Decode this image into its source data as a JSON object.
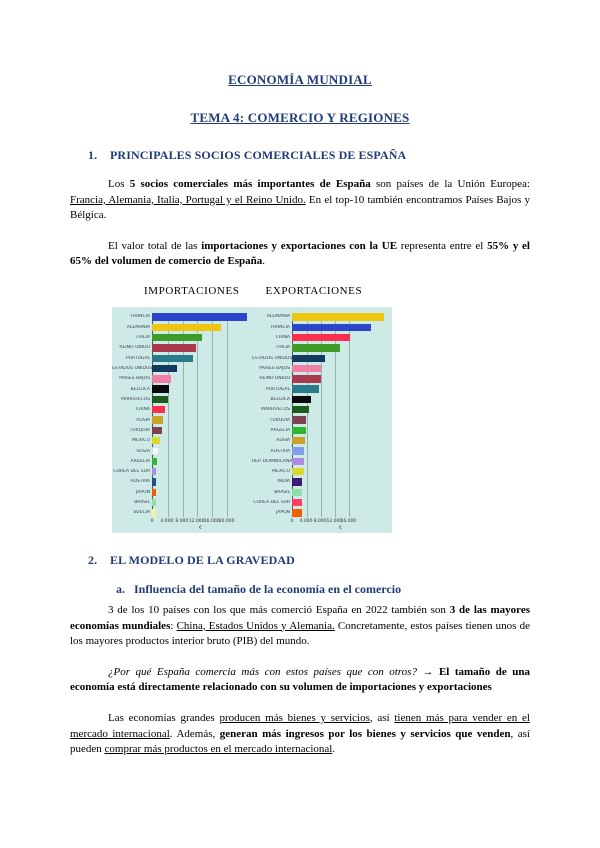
{
  "doc": {
    "title": "ECONOMÍA MUNDIAL",
    "subtitle": "TEMA 4: COMERCIO Y REGIONES"
  },
  "section1": {
    "number": "1.",
    "heading": "PRINCIPALES SOCIOS COMERCIALES DE ESPAÑA",
    "paragraphs": [
      [
        {
          "t": "Los ",
          "s": ""
        },
        {
          "t": "5 socios comerciales más importantes de España",
          "s": "b"
        },
        {
          "t": " son países de la Unión Europea: ",
          "s": ""
        },
        {
          "t": "Francia, Alemania, Italia, Portugal y el Reino Unido.",
          "s": "u"
        },
        {
          "t": " En el top-10 también encontramos Países Bajos y Bélgica.",
          "s": ""
        }
      ],
      [
        {
          "t": "El valor total de las ",
          "s": ""
        },
        {
          "t": "importaciones y exportaciones con la UE",
          "s": "b"
        },
        {
          "t": " representa entre el ",
          "s": ""
        },
        {
          "t": "55% y el 65% del volumen de comercio de España",
          "s": "b"
        },
        {
          "t": ".",
          "s": ""
        }
      ]
    ]
  },
  "chart_captions": {
    "left": "IMPORTACIONES",
    "right": "EXPORTACIONES"
  },
  "chart_data": [
    {
      "type": "bar",
      "orientation": "horizontal",
      "title": "IMPORTACIONES",
      "categories": [
        "FRANCIA",
        "ALEMANIA",
        "ITALIA",
        "REINO UNIDO",
        "PORTUGAL",
        "ESTADOS UNIDOS",
        "PAÍSES BAJOS",
        "BÉLGICA",
        "MARRUECOS",
        "CHINA",
        "RUSIA",
        "TURQUÍA",
        "MÉXICO",
        "SUIZA",
        "ARGELIA",
        "COREA DEL SUR",
        "AUSTRIA",
        "JAPÓN",
        "BRASIL",
        "SUECIA"
      ],
      "values": [
        25500,
        18500,
        13500,
        11750,
        11000,
        6800,
        5200,
        4500,
        4200,
        3500,
        3000,
        2800,
        2250,
        2000,
        1250,
        1150,
        1150,
        1100,
        1000,
        1000
      ],
      "colors": [
        "#2b44c8",
        "#eec611",
        "#3f9b28",
        "#a93a4e",
        "#2a7a8c",
        "#123a5e",
        "#ef7fa7",
        "#0a0a0a",
        "#1c5b1c",
        "#fb2e4d",
        "#c9a227",
        "#7e4250",
        "#d9d832",
        "#f8f8f8",
        "#2eb82e",
        "#b18ae0",
        "#1f4e8c",
        "#f06000",
        "#8fdfa8",
        "#f5ef9e"
      ],
      "x_ticks": [
        "0",
        "4.000",
        "8.000",
        "12.000",
        "16.000",
        "20.000"
      ],
      "x_tick_values": [
        0,
        4000,
        8000,
        12000,
        16000,
        20000
      ],
      "xlabel": "€",
      "plot_max": 26000,
      "background": "#cdeae6",
      "grid": true,
      "legend": false
    },
    {
      "type": "bar",
      "orientation": "horizontal",
      "title": "EXPORTACIONES",
      "categories": [
        "ALEMANIA",
        "FRANCIA",
        "CHINA",
        "ITALIA",
        "ESTADOS UNIDOS",
        "PAÍSES BAJOS",
        "REINO UNIDO",
        "PORTUGAL",
        "BÉLGICA",
        "MARRUECOS",
        "TURQUÍA",
        "ARGELIA",
        "RUSIA",
        "AUSTRIA",
        "REP. DOMINICANA",
        "MÉXICO",
        "INDIA",
        "BRASIL",
        "COREA DEL SUR",
        "JAPÓN"
      ],
      "values": [
        26000,
        22500,
        16500,
        13500,
        9400,
        8300,
        8200,
        7700,
        5500,
        4800,
        4100,
        3900,
        3800,
        3500,
        3400,
        3300,
        2900,
        2850,
        2800,
        2750
      ],
      "colors": [
        "#eec611",
        "#2b44c8",
        "#fb2e4d",
        "#3f9b28",
        "#123a5e",
        "#ef7fa7",
        "#a93a4e",
        "#2a7a8c",
        "#0a0a0a",
        "#1c5b1c",
        "#7e4250",
        "#2eb82e",
        "#c9a227",
        "#7f9fe8",
        "#b18ae0",
        "#d9d832",
        "#3d1a78",
        "#8fdfa8",
        "#fb4163",
        "#f06000"
      ],
      "x_ticks": [
        "0",
        "4.000",
        "8.000",
        "12.000",
        "16.000"
      ],
      "x_tick_values": [
        0,
        4000,
        8000,
        12000,
        16000
      ],
      "xlabel": "€",
      "plot_max": 27500,
      "background": "#cdeae6",
      "grid": true,
      "legend": false
    }
  ],
  "section2": {
    "number": "2.",
    "heading": "EL MODELO DE LA GRAVEDAD",
    "sub_number": "a.",
    "sub_heading": "Influencia del tamaño de la economía en el comercio",
    "paragraphs": [
      [
        {
          "t": "3 de los 10 países con los que más comerció España en 2022 también son ",
          "s": ""
        },
        {
          "t": "3 de las mayores economías mundiales",
          "s": "b"
        },
        {
          "t": ": ",
          "s": ""
        },
        {
          "t": "China, Estados Unidos y Alemania.",
          "s": "u"
        },
        {
          "t": " Concretamente, estos países tienen unos de los mayores productos interior bruto (PIB) del mundo.",
          "s": ""
        }
      ],
      [
        {
          "t": "¿Por qué España comercia más con estos países que con otros? ",
          "s": "i"
        },
        {
          "t": "→ ",
          "s": ""
        },
        {
          "t": "El tamaño de una economía está directamente relacionado con su volumen de importaciones y exportaciones",
          "s": "b"
        }
      ],
      [
        {
          "t": "Las economías grandes ",
          "s": ""
        },
        {
          "t": "producen más bienes y servicios",
          "s": "u"
        },
        {
          "t": ", así ",
          "s": ""
        },
        {
          "t": "tienen más para vender en el mercado internacional",
          "s": "u"
        },
        {
          "t": ". Además, ",
          "s": ""
        },
        {
          "t": "generan más ingresos por los bienes y servicios que venden",
          "s": "b"
        },
        {
          "t": ", así pueden ",
          "s": ""
        },
        {
          "t": "comprar más productos en el mercado internacional",
          "s": "u"
        },
        {
          "t": ".",
          "s": ""
        }
      ]
    ]
  }
}
